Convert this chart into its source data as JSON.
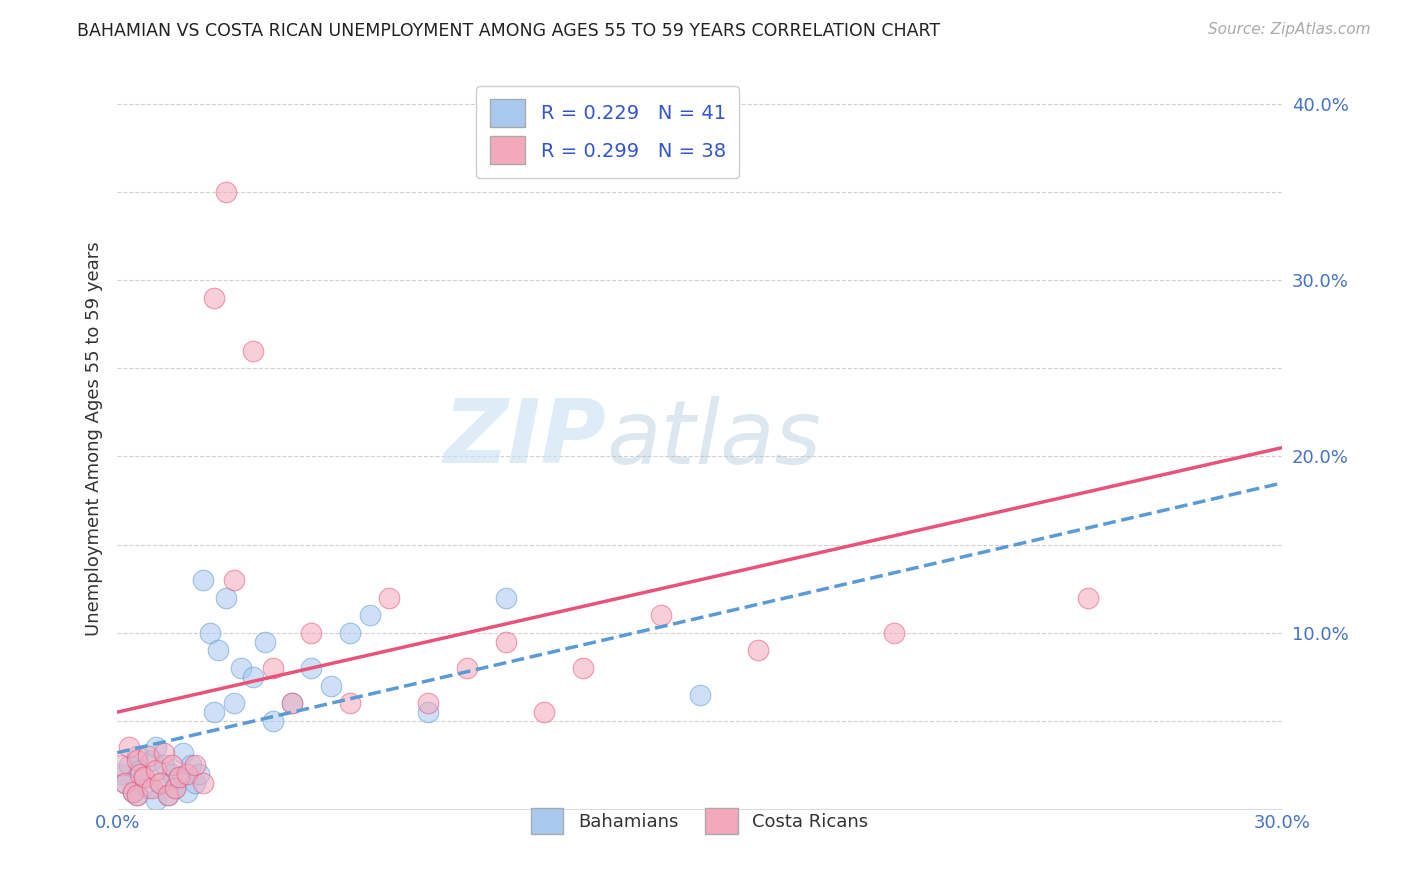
{
  "title": "BAHAMIAN VS COSTA RICAN UNEMPLOYMENT AMONG AGES 55 TO 59 YEARS CORRELATION CHART",
  "source": "Source: ZipAtlas.com",
  "ylabel": "Unemployment Among Ages 55 to 59 years",
  "xlim": [
    0.0,
    0.3
  ],
  "ylim": [
    0.0,
    0.42
  ],
  "xticks": [
    0.0,
    0.05,
    0.1,
    0.15,
    0.2,
    0.25,
    0.3
  ],
  "yticks": [
    0.0,
    0.05,
    0.1,
    0.15,
    0.2,
    0.25,
    0.3,
    0.35,
    0.4
  ],
  "legend_label1": "R = 0.229   N = 41",
  "legend_label2": "R = 0.299   N = 38",
  "color_blue": "#a8c8f0",
  "color_pink": "#f4a8bb",
  "line_blue": "#5b9bd5",
  "line_pink": "#e8537a",
  "watermark_zip": "ZIP",
  "watermark_atlas": "atlas",
  "footer_label1": "Bahamians",
  "footer_label2": "Costa Ricans",
  "bahamian_x": [
    0.001,
    0.002,
    0.003,
    0.004,
    0.005,
    0.005,
    0.006,
    0.007,
    0.008,
    0.009,
    0.01,
    0.01,
    0.011,
    0.012,
    0.013,
    0.014,
    0.015,
    0.016,
    0.017,
    0.018,
    0.019,
    0.02,
    0.021,
    0.022,
    0.024,
    0.025,
    0.026,
    0.028,
    0.03,
    0.032,
    0.035,
    0.038,
    0.04,
    0.045,
    0.05,
    0.055,
    0.06,
    0.065,
    0.08,
    0.1,
    0.15
  ],
  "bahamian_y": [
    0.02,
    0.015,
    0.025,
    0.01,
    0.03,
    0.008,
    0.022,
    0.018,
    0.012,
    0.028,
    0.005,
    0.035,
    0.015,
    0.025,
    0.008,
    0.02,
    0.012,
    0.018,
    0.032,
    0.01,
    0.025,
    0.015,
    0.02,
    0.13,
    0.1,
    0.055,
    0.09,
    0.12,
    0.06,
    0.08,
    0.075,
    0.095,
    0.05,
    0.06,
    0.08,
    0.07,
    0.1,
    0.11,
    0.055,
    0.12,
    0.065
  ],
  "costarican_x": [
    0.001,
    0.002,
    0.003,
    0.004,
    0.005,
    0.005,
    0.006,
    0.007,
    0.008,
    0.009,
    0.01,
    0.011,
    0.012,
    0.013,
    0.014,
    0.015,
    0.016,
    0.018,
    0.02,
    0.022,
    0.025,
    0.028,
    0.03,
    0.035,
    0.04,
    0.045,
    0.05,
    0.06,
    0.07,
    0.08,
    0.09,
    0.1,
    0.11,
    0.12,
    0.14,
    0.165,
    0.2,
    0.25
  ],
  "costarican_y": [
    0.025,
    0.015,
    0.035,
    0.01,
    0.028,
    0.008,
    0.02,
    0.018,
    0.03,
    0.012,
    0.022,
    0.015,
    0.032,
    0.008,
    0.025,
    0.012,
    0.018,
    0.02,
    0.025,
    0.015,
    0.29,
    0.35,
    0.13,
    0.26,
    0.08,
    0.06,
    0.1,
    0.06,
    0.12,
    0.06,
    0.08,
    0.095,
    0.055,
    0.08,
    0.11,
    0.09,
    0.1,
    0.12
  ],
  "line_b_x0": 0.0,
  "line_b_y0": 0.032,
  "line_b_x1": 0.3,
  "line_b_y1": 0.185,
  "line_p_x0": 0.0,
  "line_p_y0": 0.055,
  "line_p_x1": 0.3,
  "line_p_y1": 0.205
}
